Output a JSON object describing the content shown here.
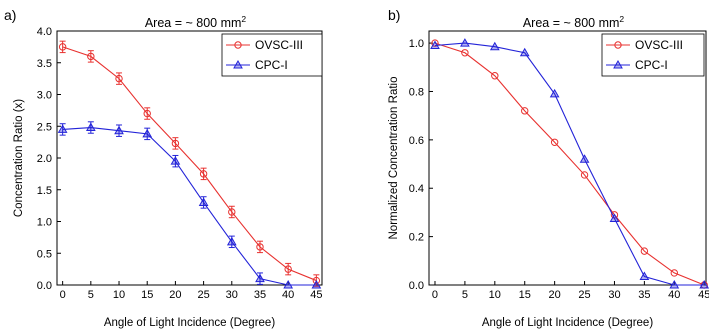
{
  "chart_data": [
    {
      "type": "line",
      "panel_label": "a)",
      "title": "Area = ~ 800 mm",
      "title_superscript": "2",
      "xlabel": "Angle of Light Incidence (Degree)",
      "ylabel": "Concentration Ratio (x)",
      "xlim": [
        -1,
        46
      ],
      "ylim": [
        0.0,
        4.0
      ],
      "x": [
        0,
        5,
        10,
        15,
        20,
        25,
        30,
        35,
        40,
        45
      ],
      "xticks": [
        "0",
        "5",
        "10",
        "15",
        "20",
        "25",
        "30",
        "35",
        "40",
        "45"
      ],
      "yticks": [
        "0.0",
        "0.5",
        "1.0",
        "1.5",
        "2.0",
        "2.5",
        "3.0",
        "3.5",
        "4.0"
      ],
      "legend_position": "top-right",
      "error_bars": true,
      "series": [
        {
          "name": "OVSC-III",
          "color": "#e8312f",
          "marker": "circle",
          "values": [
            3.75,
            3.6,
            3.25,
            2.7,
            2.23,
            1.75,
            1.15,
            0.6,
            0.25,
            0.07
          ],
          "errors": [
            0.09,
            0.09,
            0.09,
            0.09,
            0.09,
            0.09,
            0.09,
            0.09,
            0.09,
            0.09
          ]
        },
        {
          "name": "CPC-I",
          "color": "#2323d8",
          "marker": "triangle",
          "values": [
            2.45,
            2.48,
            2.43,
            2.38,
            1.95,
            1.3,
            0.68,
            0.1,
            0.0,
            0.0
          ],
          "errors": [
            0.09,
            0.09,
            0.09,
            0.09,
            0.09,
            0.09,
            0.09,
            0.09,
            0.0,
            0.0
          ]
        }
      ]
    },
    {
      "type": "line",
      "panel_label": "b)",
      "title": "Area = ~ 800 mm",
      "title_superscript": "2",
      "xlabel": "Angle of Light Incidence (Degree)",
      "ylabel": "Normalized Concentration Ratio",
      "xlim": [
        -1,
        45.3
      ],
      "ylim": [
        0.0,
        1.05
      ],
      "x": [
        0,
        5,
        10,
        15,
        20,
        25,
        30,
        35,
        40,
        45
      ],
      "xticks": [
        "0",
        "5",
        "10",
        "15",
        "20",
        "25",
        "30",
        "35",
        "40",
        "45"
      ],
      "yticks": [
        "0.0",
        "0.2",
        "0.4",
        "0.6",
        "0.8",
        "1.0"
      ],
      "legend_position": "top-right",
      "error_bars": false,
      "series": [
        {
          "name": "OVSC-III",
          "color": "#e8312f",
          "marker": "circle",
          "values": [
            1.0,
            0.96,
            0.865,
            0.72,
            0.59,
            0.455,
            0.29,
            0.14,
            0.05,
            0.0
          ]
        },
        {
          "name": "CPC-I",
          "color": "#2323d8",
          "marker": "triangle",
          "values": [
            0.99,
            1.0,
            0.985,
            0.96,
            0.79,
            0.52,
            0.275,
            0.035,
            0.0,
            0.0
          ]
        }
      ]
    }
  ]
}
